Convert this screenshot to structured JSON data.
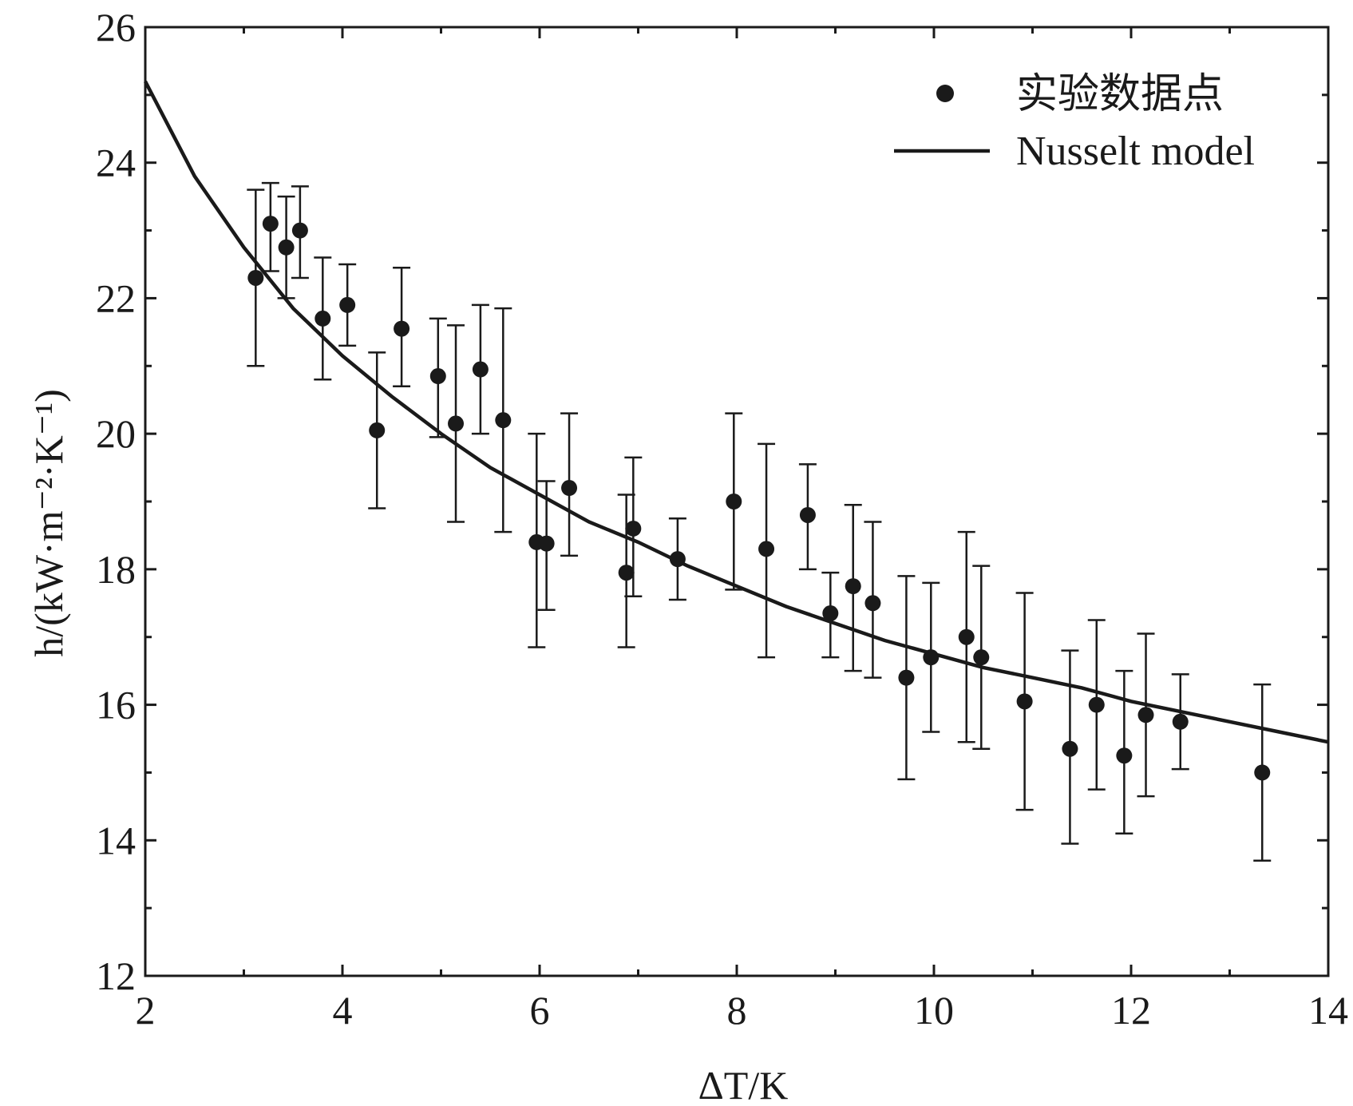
{
  "chart_data": {
    "type": "scatter",
    "xlabel": "ΔT/K",
    "ylabel": "h/(kW·m⁻²·K⁻¹)",
    "xlim": [
      2,
      14
    ],
    "ylim": [
      12,
      26
    ],
    "xticks": [
      2,
      4,
      6,
      8,
      10,
      12,
      14
    ],
    "yticks": [
      12,
      14,
      16,
      18,
      20,
      22,
      24,
      26
    ],
    "grid": false,
    "legend_position": "top-right",
    "colors": {
      "ink": "#1a1a1a"
    },
    "series": [
      {
        "name": "实验数据点",
        "kind": "scatter-with-errorbars",
        "points": [
          {
            "x": 3.12,
            "y": 22.3,
            "lo": 21.0,
            "hi": 23.6
          },
          {
            "x": 3.27,
            "y": 23.1,
            "lo": 22.4,
            "hi": 23.7
          },
          {
            "x": 3.43,
            "y": 22.75,
            "lo": 22.0,
            "hi": 23.5
          },
          {
            "x": 3.57,
            "y": 23.0,
            "lo": 22.3,
            "hi": 23.65
          },
          {
            "x": 3.8,
            "y": 21.7,
            "lo": 20.8,
            "hi": 22.6
          },
          {
            "x": 4.05,
            "y": 21.9,
            "lo": 21.3,
            "hi": 22.5
          },
          {
            "x": 4.35,
            "y": 20.05,
            "lo": 18.9,
            "hi": 21.2
          },
          {
            "x": 4.6,
            "y": 21.55,
            "lo": 20.7,
            "hi": 22.45
          },
          {
            "x": 4.97,
            "y": 20.85,
            "lo": 19.95,
            "hi": 21.7
          },
          {
            "x": 5.15,
            "y": 20.15,
            "lo": 18.7,
            "hi": 21.6
          },
          {
            "x": 5.4,
            "y": 20.95,
            "lo": 20.0,
            "hi": 21.9
          },
          {
            "x": 5.63,
            "y": 20.2,
            "lo": 18.55,
            "hi": 21.85
          },
          {
            "x": 5.97,
            "y": 18.4,
            "lo": 16.85,
            "hi": 20.0
          },
          {
            "x": 6.07,
            "y": 18.38,
            "lo": 17.4,
            "hi": 19.3
          },
          {
            "x": 6.3,
            "y": 19.2,
            "lo": 18.2,
            "hi": 20.3
          },
          {
            "x": 6.88,
            "y": 17.95,
            "lo": 16.85,
            "hi": 19.1
          },
          {
            "x": 6.95,
            "y": 18.6,
            "lo": 17.6,
            "hi": 19.65
          },
          {
            "x": 7.4,
            "y": 18.15,
            "lo": 17.55,
            "hi": 18.75
          },
          {
            "x": 7.97,
            "y": 19.0,
            "lo": 17.7,
            "hi": 20.3
          },
          {
            "x": 8.3,
            "y": 18.3,
            "lo": 16.7,
            "hi": 19.85
          },
          {
            "x": 8.72,
            "y": 18.8,
            "lo": 18.0,
            "hi": 19.55
          },
          {
            "x": 8.95,
            "y": 17.35,
            "lo": 16.7,
            "hi": 17.95
          },
          {
            "x": 9.18,
            "y": 17.75,
            "lo": 16.5,
            "hi": 18.95
          },
          {
            "x": 9.38,
            "y": 17.5,
            "lo": 16.4,
            "hi": 18.7
          },
          {
            "x": 9.72,
            "y": 16.4,
            "lo": 14.9,
            "hi": 17.9
          },
          {
            "x": 9.97,
            "y": 16.7,
            "lo": 15.6,
            "hi": 17.8
          },
          {
            "x": 10.33,
            "y": 17.0,
            "lo": 15.45,
            "hi": 18.55
          },
          {
            "x": 10.48,
            "y": 16.7,
            "lo": 15.35,
            "hi": 18.05
          },
          {
            "x": 10.92,
            "y": 16.05,
            "lo": 14.45,
            "hi": 17.65
          },
          {
            "x": 11.38,
            "y": 15.35,
            "lo": 13.95,
            "hi": 16.8
          },
          {
            "x": 11.65,
            "y": 16.0,
            "lo": 14.75,
            "hi": 17.25
          },
          {
            "x": 11.93,
            "y": 15.25,
            "lo": 14.1,
            "hi": 16.5
          },
          {
            "x": 12.15,
            "y": 15.85,
            "lo": 14.65,
            "hi": 17.05
          },
          {
            "x": 12.5,
            "y": 15.75,
            "lo": 15.05,
            "hi": 16.45
          },
          {
            "x": 13.33,
            "y": 15.0,
            "lo": 13.7,
            "hi": 16.3
          }
        ]
      },
      {
        "name": "Nusselt model",
        "kind": "line",
        "x": [
          2.0,
          2.5,
          3.0,
          3.5,
          4.0,
          4.5,
          5.0,
          5.5,
          6.0,
          6.5,
          7.0,
          7.5,
          8.0,
          8.5,
          9.0,
          9.5,
          10.0,
          10.5,
          11.0,
          11.5,
          12.0,
          12.5,
          13.0,
          13.5,
          14.0
        ],
        "y": [
          25.2,
          23.8,
          22.75,
          21.85,
          21.15,
          20.55,
          20.0,
          19.5,
          19.1,
          18.7,
          18.4,
          18.05,
          17.75,
          17.45,
          17.2,
          16.95,
          16.75,
          16.55,
          16.4,
          16.25,
          16.05,
          15.9,
          15.75,
          15.6,
          15.45
        ]
      }
    ]
  }
}
